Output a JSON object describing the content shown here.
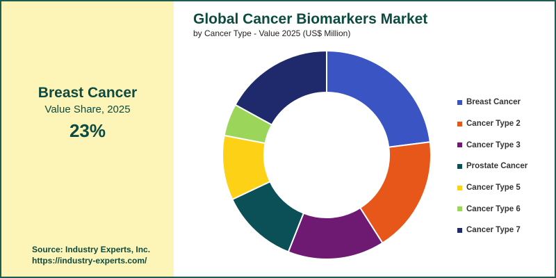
{
  "highlight": {
    "name": "Breast Cancer",
    "subtitle": "Value Share, 2025",
    "value": "23%"
  },
  "source": {
    "line1": "Source: Industry Experts, Inc.",
    "line2": "https://industry-experts.com/"
  },
  "chart_data": {
    "type": "pie",
    "style": "donut",
    "title": "Global Cancer Biomarkers Market",
    "subtitle": "by Cancer Type - Value 2025 (US$ Million)",
    "legend_position": "right",
    "series": [
      {
        "name": "Breast Cancer",
        "share": 23,
        "color": "#3a54c4"
      },
      {
        "name": "Cancer Type 2",
        "share": 18,
        "color": "#e8571a"
      },
      {
        "name": "Cancer Type 3",
        "share": 15,
        "color": "#6e1a72"
      },
      {
        "name": "Prostate Cancer",
        "share": 12,
        "color": "#0b4f57"
      },
      {
        "name": "Cancer Type 5",
        "share": 10,
        "color": "#fcd116"
      },
      {
        "name": "Cancer Type 6",
        "share": 5,
        "color": "#9bd65b"
      },
      {
        "name": "Cancer Type 7",
        "share": 17,
        "color": "#1e2a6b"
      }
    ]
  }
}
